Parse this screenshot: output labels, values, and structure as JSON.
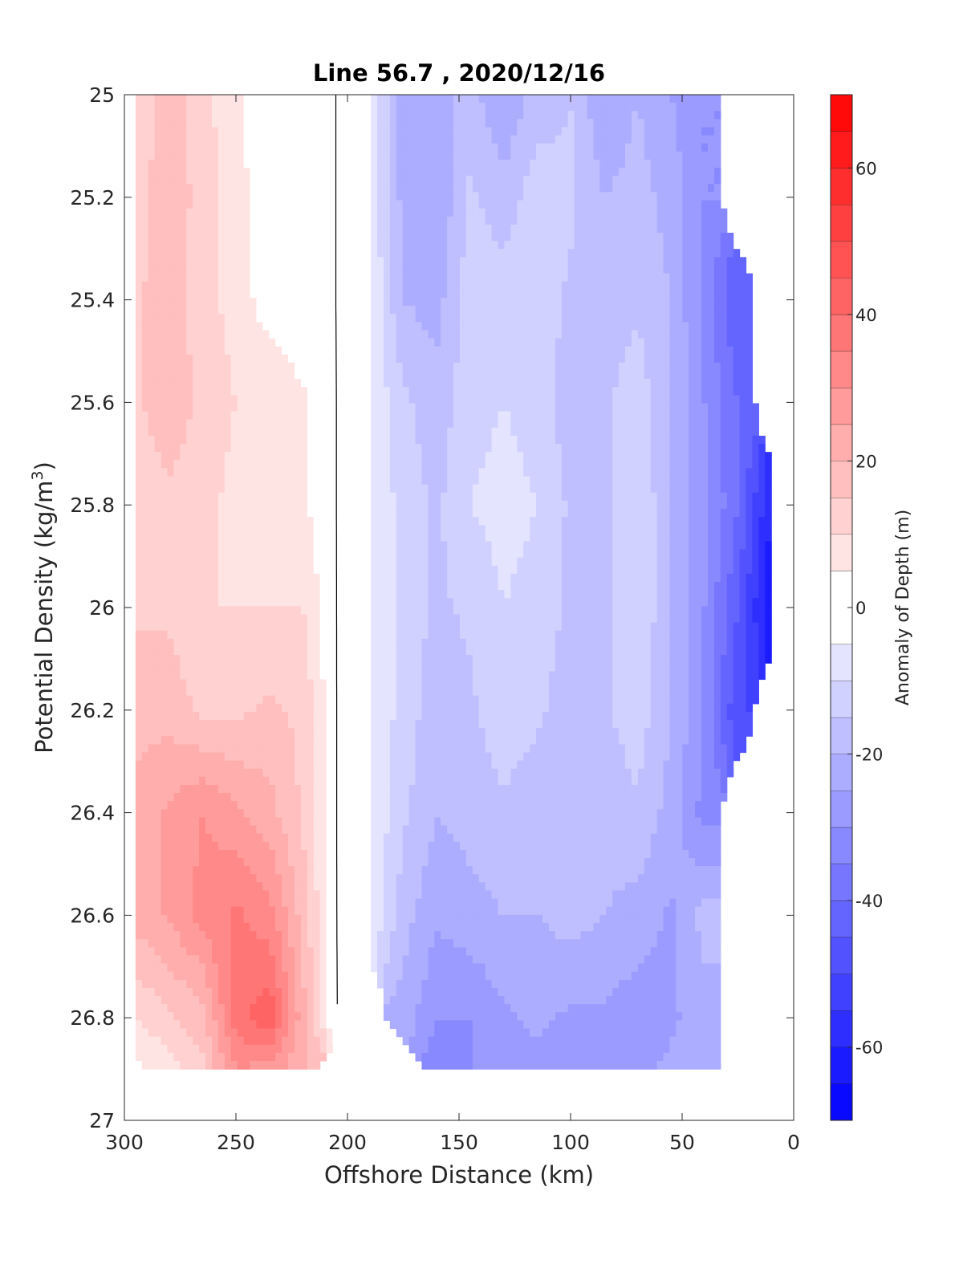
{
  "chart_data": {
    "type": "heatmap",
    "subtype": "filled-contour",
    "title": "Line 56.7 , 2020/12/16",
    "xlabel": "Offshore Distance (km)",
    "ylabel_main": "Potential Density (kg/m",
    "ylabel_sup": "3",
    "ylabel_close": ")",
    "colorbar_label": "Anomaly of Depth (m)",
    "xlim": [
      300,
      0
    ],
    "ylim": [
      25,
      27
    ],
    "x_reversed": true,
    "y_reversed": true,
    "xticks": [
      300,
      250,
      200,
      150,
      100,
      50,
      0
    ],
    "xtick_labels": [
      "300",
      "250",
      "200",
      "150",
      "100",
      "50",
      "0"
    ],
    "yticks": [
      25,
      25.2,
      25.4,
      25.6,
      25.8,
      26,
      26.2,
      26.4,
      26.6,
      26.8,
      27
    ],
    "ytick_labels": [
      "25",
      "25.2",
      "25.4",
      "25.6",
      "25.8",
      "26",
      "26.2",
      "26.4",
      "26.6",
      "26.8",
      "27"
    ],
    "clim": [
      -70,
      70
    ],
    "colorbar_ticks": [
      60,
      40,
      20,
      0,
      -20,
      -40,
      -60
    ],
    "colorbar_tick_labels": [
      "60",
      "40",
      "20",
      "0",
      "-20",
      "-40",
      "-60"
    ],
    "contour_levels": [
      -70,
      -65,
      -60,
      -55,
      -50,
      -45,
      -40,
      -35,
      -30,
      -25,
      -20,
      -15,
      -10,
      -5,
      5,
      10,
      15,
      20,
      25,
      30,
      35,
      40,
      45,
      50,
      55,
      60,
      65,
      70
    ],
    "colormap": "blue-white-red diverging",
    "zero_contour_color": "#000000",
    "grid": false,
    "x": [
      295,
      280,
      265,
      250,
      235,
      220,
      205,
      190,
      175,
      160,
      145,
      130,
      115,
      100,
      85,
      70,
      55,
      40,
      25,
      10
    ],
    "y": [
      25.0,
      25.2,
      25.4,
      25.6,
      25.8,
      26.0,
      26.2,
      26.4,
      26.6,
      26.8,
      26.9
    ],
    "z": [
      [
        10,
        18,
        12,
        6,
        0,
        0,
        0,
        -5,
        -22,
        -22,
        -18,
        -25,
        -18,
        -15,
        -25,
        -20,
        -25,
        -30,
        null,
        null
      ],
      [
        12,
        20,
        12,
        8,
        0,
        0,
        0,
        -5,
        -22,
        -25,
        -14,
        -18,
        -12,
        -14,
        -20,
        -18,
        -22,
        -30,
        null,
        null
      ],
      [
        14,
        18,
        12,
        8,
        2,
        0,
        0,
        -5,
        -20,
        -22,
        -12,
        -12,
        -12,
        -16,
        -18,
        -16,
        -20,
        -32,
        -45,
        null
      ],
      [
        14,
        18,
        14,
        10,
        10,
        6,
        0,
        -5,
        -14,
        -18,
        -12,
        -10,
        -12,
        -18,
        -16,
        -12,
        -20,
        -30,
        -40,
        null
      ],
      [
        12,
        14,
        12,
        8,
        10,
        6,
        0,
        -5,
        -12,
        -16,
        -10,
        -8,
        -10,
        -16,
        -16,
        -10,
        -20,
        -28,
        -40,
        -60
      ],
      [
        14,
        14,
        10,
        10,
        10,
        10,
        0,
        -5,
        -12,
        -16,
        -14,
        -10,
        -12,
        -16,
        -16,
        -10,
        -20,
        -30,
        -45,
        -65
      ],
      [
        18,
        18,
        14,
        14,
        16,
        14,
        0,
        -5,
        -12,
        -18,
        -16,
        -12,
        -14,
        -18,
        -16,
        -12,
        -20,
        -30,
        -50,
        null
      ],
      [
        22,
        26,
        30,
        26,
        22,
        14,
        0,
        -5,
        -14,
        -20,
        -18,
        -16,
        -18,
        -20,
        -18,
        -16,
        -22,
        -32,
        null,
        null
      ],
      [
        22,
        26,
        32,
        36,
        32,
        18,
        0,
        -5,
        -18,
        -24,
        -22,
        -20,
        -20,
        -18,
        -20,
        -22,
        -26,
        -18,
        null,
        null
      ],
      [
        10,
        14,
        18,
        38,
        44,
        22,
        0,
        null,
        -22,
        -30,
        -30,
        -26,
        -24,
        -26,
        -26,
        -28,
        -26,
        -22,
        null,
        null
      ],
      [
        4,
        8,
        14,
        30,
        28,
        20,
        null,
        null,
        null,
        -32,
        -30,
        -28,
        -26,
        -28,
        -28,
        -26,
        -24,
        -22,
        null,
        null
      ]
    ]
  }
}
